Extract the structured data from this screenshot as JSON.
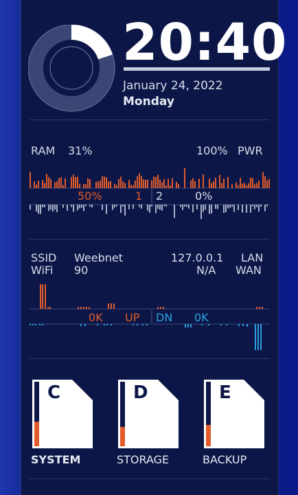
{
  "clock": {
    "time": "20:40",
    "date": "January 24, 2022",
    "weekday": "Monday",
    "ring_level": 0.2
  },
  "system": {
    "ram_label": "RAM",
    "ram_value": "31%",
    "pwr_value": "100%",
    "pwr_label": "PWR",
    "stat_1": "50%",
    "stat_2": "1",
    "stat_3": "2",
    "stat_4": "0%"
  },
  "network": {
    "ssid_label": "SSID",
    "ssid_value": "Weebnet",
    "wifi_label": "WiFi",
    "wifi_value": "90",
    "lan_ip": "127.0.0.1",
    "lan_label": "LAN",
    "wan_ip": "N/A",
    "wan_label": "WAN",
    "up_value": "0K",
    "up_label": "UP",
    "dn_label": "DN",
    "dn_value": "0K"
  },
  "drives": [
    {
      "letter": "C",
      "name": "SYSTEM",
      "used": 0.38
    },
    {
      "letter": "D",
      "name": "STORAGE",
      "used": 0.3
    },
    {
      "letter": "E",
      "name": "BACKUP",
      "used": 0.33
    }
  ],
  "colors": {
    "accent": "#e25c2b",
    "network_down": "#2aa0e0",
    "panel": "#0c1747"
  }
}
